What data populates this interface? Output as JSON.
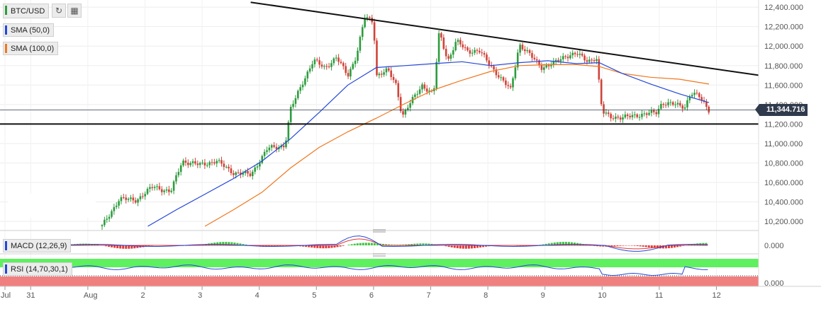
{
  "toolbar": {
    "symbol": "BTC/USD",
    "refresh_icon": "refresh-icon",
    "calendar_icon": "calendar-icon"
  },
  "indicators": {
    "sma50": {
      "label": "SMA (50,0)",
      "color": "#2447d8"
    },
    "sma100": {
      "label": "SMA (100,0)",
      "color": "#f0771e"
    },
    "macd": {
      "label": "MACD (12,26,9)",
      "color": "#2447d8"
    },
    "rsi": {
      "label": "RSI (14,70,30,1)",
      "color": "#2447d8"
    }
  },
  "current_price": "11,344.716",
  "colors": {
    "up": "#2e9c3e",
    "down": "#d0443a",
    "rsi_upper": "#5ef05e",
    "rsi_lower": "#f08080"
  },
  "chart_data": {
    "type": "candlestick",
    "x_tick_labels": [
      "Jul",
      "31",
      "Aug",
      "2",
      "3",
      "4",
      "5",
      "6",
      "7",
      "8",
      "9",
      "10",
      "11",
      "12"
    ],
    "y_tick_labels": [
      "12,400.000",
      "12,200.000",
      "12,000.000",
      "11,800.000",
      "11,600.000",
      "11,400.000",
      "11,200.000",
      "11,000.000",
      "10,800.000",
      "10,600.000",
      "10,400.000",
      "10,200.000"
    ],
    "ylim": [
      10150,
      12430
    ],
    "y_ticks": [
      12400,
      12200,
      12000,
      11800,
      11600,
      11400,
      11200,
      11000,
      10800,
      10600,
      10400,
      10200
    ],
    "macd_tick_label": "0.000",
    "rsi_tick_label": "0.000",
    "price_path": [
      [
        1.7,
        10150
      ],
      [
        2.0,
        10430
      ],
      [
        2.3,
        10420
      ],
      [
        2.6,
        10560
      ],
      [
        2.9,
        10500
      ],
      [
        3.1,
        10820
      ],
      [
        3.4,
        10780
      ],
      [
        3.7,
        10820
      ],
      [
        4.0,
        10700
      ],
      [
        4.3,
        10680
      ],
      [
        4.6,
        10950
      ],
      [
        4.9,
        10980
      ],
      [
        5.0,
        11350
      ],
      [
        5.2,
        11620
      ],
      [
        5.4,
        11850
      ],
      [
        5.6,
        11780
      ],
      [
        5.8,
        11880
      ],
      [
        6.0,
        11700
      ],
      [
        6.15,
        11900
      ],
      [
        6.3,
        12300
      ],
      [
        6.45,
        12250
      ],
      [
        6.5,
        11700
      ],
      [
        6.7,
        11750
      ],
      [
        6.85,
        11600
      ],
      [
        6.95,
        11280
      ],
      [
        7.1,
        11420
      ],
      [
        7.3,
        11600
      ],
      [
        7.5,
        11500
      ],
      [
        7.6,
        12150
      ],
      [
        7.75,
        11850
      ],
      [
        7.9,
        12050
      ],
      [
        8.1,
        11950
      ],
      [
        8.3,
        11950
      ],
      [
        8.5,
        11800
      ],
      [
        8.7,
        11650
      ],
      [
        8.85,
        11550
      ],
      [
        9.0,
        12020
      ],
      [
        9.2,
        11900
      ],
      [
        9.4,
        11780
      ],
      [
        9.6,
        11820
      ],
      [
        9.8,
        11900
      ],
      [
        10.0,
        11920
      ],
      [
        10.2,
        11850
      ],
      [
        10.35,
        11880
      ],
      [
        10.45,
        11320
      ],
      [
        10.6,
        11280
      ],
      [
        10.8,
        11260
      ],
      [
        11.0,
        11290
      ],
      [
        11.2,
        11300
      ],
      [
        11.4,
        11320
      ],
      [
        11.5,
        11420
      ],
      [
        11.7,
        11400
      ],
      [
        11.9,
        11380
      ],
      [
        12.0,
        11520
      ],
      [
        12.15,
        11480
      ],
      [
        12.25,
        11400
      ],
      [
        12.32,
        11345
      ]
    ],
    "sma50": [
      [
        2.5,
        10150
      ],
      [
        3.0,
        10320
      ],
      [
        3.5,
        10480
      ],
      [
        4.0,
        10640
      ],
      [
        4.5,
        10820
      ],
      [
        5.0,
        11050
      ],
      [
        5.5,
        11320
      ],
      [
        6.0,
        11600
      ],
      [
        6.5,
        11780
      ],
      [
        7.0,
        11800
      ],
      [
        7.5,
        11820
      ],
      [
        8.0,
        11840
      ],
      [
        8.5,
        11800
      ],
      [
        9.0,
        11830
      ],
      [
        9.5,
        11850
      ],
      [
        10.0,
        11820
      ],
      [
        10.4,
        11830
      ],
      [
        10.8,
        11720
      ],
      [
        11.3,
        11610
      ],
      [
        11.8,
        11510
      ],
      [
        12.32,
        11420
      ]
    ],
    "sma100": [
      [
        3.5,
        10150
      ],
      [
        4.0,
        10320
      ],
      [
        4.5,
        10500
      ],
      [
        5.0,
        10750
      ],
      [
        5.5,
        10960
      ],
      [
        6.0,
        11120
      ],
      [
        6.5,
        11260
      ],
      [
        7.0,
        11410
      ],
      [
        7.5,
        11550
      ],
      [
        8.0,
        11650
      ],
      [
        8.5,
        11740
      ],
      [
        9.0,
        11800
      ],
      [
        9.5,
        11810
      ],
      [
        10.0,
        11810
      ],
      [
        10.4,
        11790
      ],
      [
        10.8,
        11720
      ],
      [
        11.3,
        11680
      ],
      [
        11.8,
        11660
      ],
      [
        12.32,
        11610
      ]
    ],
    "trend_line": [
      [
        4.3,
        12450
      ],
      [
        13.2,
        11700
      ]
    ],
    "support_line": 11200,
    "last_price": 11344.716
  }
}
